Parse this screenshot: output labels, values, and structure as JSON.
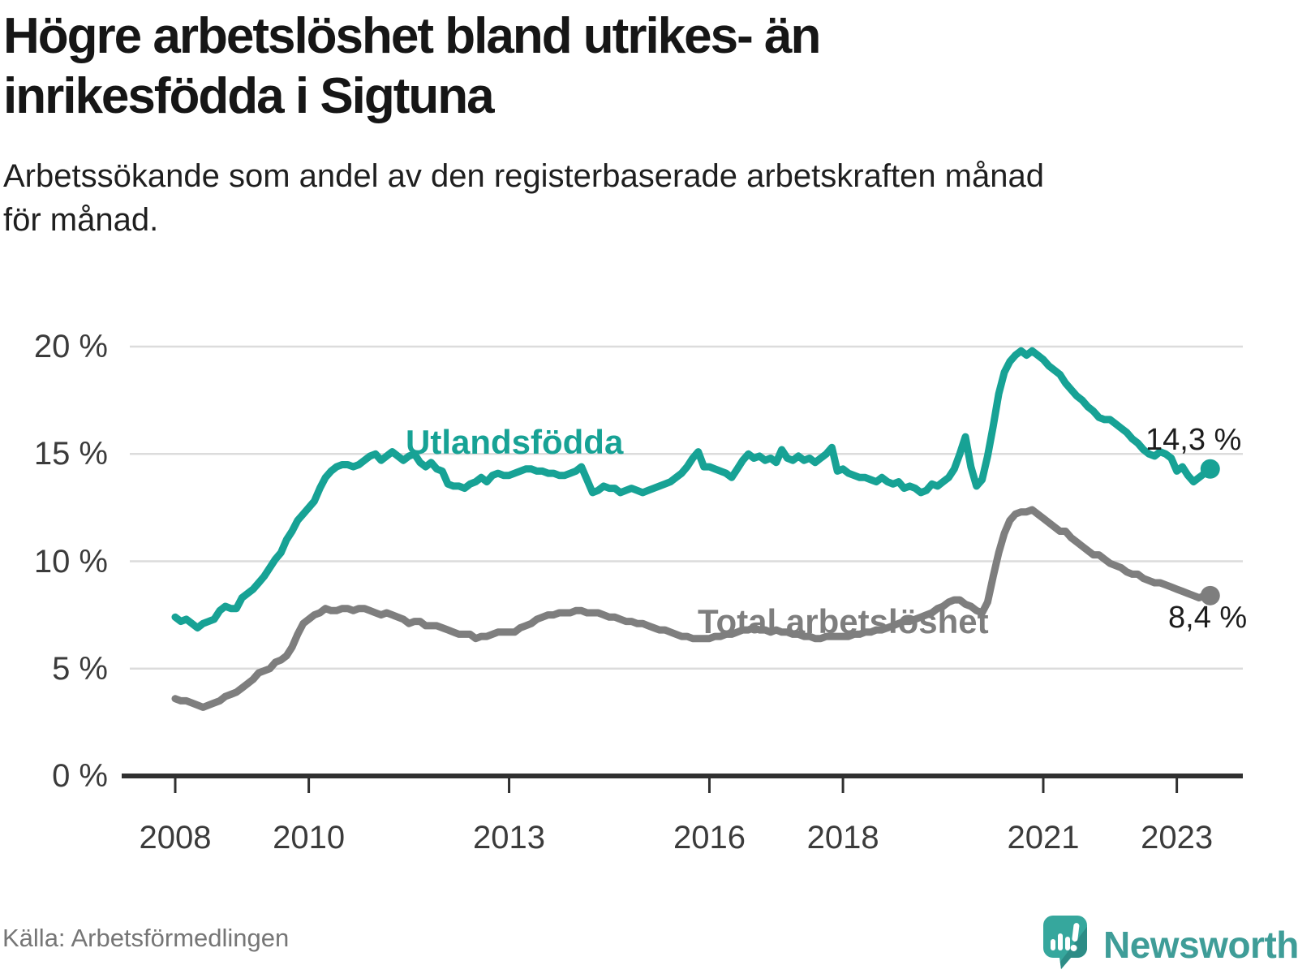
{
  "header": {
    "title_lines": [
      "Högre arbetslöshet bland utrikes- än",
      "inrikesfödda i Sigtuna"
    ],
    "subtitle_lines": [
      "Arbetssökande som andel av den registerbaserade arbetskraften månad",
      "för månad."
    ]
  },
  "footer": {
    "source": "Källa: Arbetsförmedlingen",
    "brand": "Newsworthy"
  },
  "colors": {
    "series_utlandsfodda": "#17a295",
    "series_total": "#7e7e7e",
    "grid": "#dcdcdc",
    "axis": "#303030",
    "logo_teal": "#36a79d",
    "logo_text": "#3f9d98"
  },
  "chart_data": {
    "type": "line",
    "title": "Högre arbetslöshet bland utrikes- än inrikesfödda i Sigtuna",
    "subtitle": "Arbetssökande som andel av den registerbaserade arbetskraften månad för månad.",
    "frequency": "monthly",
    "x_start": "2008-01",
    "x_end": "2023-07",
    "grid": "horizontal",
    "legend_position": "inline-labels",
    "y_axis": {
      "unit": "%",
      "ylim": [
        0,
        20
      ],
      "tick_values": [
        20,
        15,
        10,
        5,
        0
      ],
      "tick_labels": [
        "20 %",
        "15 %",
        "10 %",
        "5 %",
        "0 %"
      ]
    },
    "x_axis": {
      "tick_years": [
        2008,
        2010,
        2013,
        2016,
        2018,
        2021,
        2023
      ],
      "tick_labels": [
        "2008",
        "2010",
        "2013",
        "2016",
        "2018",
        "2021",
        "2023"
      ]
    },
    "series": [
      {
        "name": "Utlandsfödda",
        "color": "#17a295",
        "end_label": "14,3 %",
        "end_value": 14.3,
        "values": [
          7.4,
          7.2,
          7.3,
          7.1,
          6.9,
          7.1,
          7.2,
          7.3,
          7.7,
          7.9,
          7.8,
          7.8,
          8.3,
          8.5,
          8.7,
          9.0,
          9.3,
          9.7,
          10.1,
          10.4,
          11.0,
          11.4,
          11.9,
          12.2,
          12.5,
          12.8,
          13.4,
          13.9,
          14.2,
          14.4,
          14.5,
          14.5,
          14.4,
          14.5,
          14.7,
          14.9,
          15.0,
          14.7,
          14.9,
          15.1,
          14.9,
          14.7,
          14.9,
          15.0,
          14.6,
          14.4,
          14.6,
          14.3,
          14.2,
          13.6,
          13.5,
          13.5,
          13.4,
          13.6,
          13.7,
          13.9,
          13.7,
          14.0,
          14.1,
          14.0,
          14.0,
          14.1,
          14.2,
          14.3,
          14.3,
          14.2,
          14.2,
          14.1,
          14.1,
          14.0,
          14.0,
          14.1,
          14.2,
          14.4,
          13.8,
          13.2,
          13.3,
          13.5,
          13.4,
          13.4,
          13.2,
          13.3,
          13.4,
          13.3,
          13.2,
          13.3,
          13.4,
          13.5,
          13.6,
          13.7,
          13.9,
          14.1,
          14.4,
          14.8,
          15.1,
          14.4,
          14.4,
          14.3,
          14.2,
          14.1,
          13.9,
          14.3,
          14.7,
          15.0,
          14.8,
          14.9,
          14.7,
          14.8,
          14.6,
          15.2,
          14.8,
          14.7,
          14.9,
          14.7,
          14.8,
          14.6,
          14.8,
          15.0,
          15.3,
          14.2,
          14.3,
          14.1,
          14.0,
          13.9,
          13.9,
          13.8,
          13.7,
          13.9,
          13.7,
          13.6,
          13.7,
          13.4,
          13.5,
          13.4,
          13.2,
          13.3,
          13.6,
          13.5,
          13.7,
          13.9,
          14.3,
          15.0,
          15.8,
          14.4,
          13.5,
          13.8,
          14.9,
          16.3,
          17.8,
          18.8,
          19.3,
          19.6,
          19.8,
          19.6,
          19.8,
          19.6,
          19.4,
          19.1,
          18.9,
          18.7,
          18.3,
          18.0,
          17.7,
          17.5,
          17.2,
          17.0,
          16.7,
          16.6,
          16.6,
          16.4,
          16.2,
          16.0,
          15.7,
          15.5,
          15.2,
          15.0,
          14.9,
          15.1,
          15.0,
          14.8,
          14.2,
          14.4,
          14.0,
          13.7,
          13.9,
          14.1,
          14.3
        ]
      },
      {
        "name": "Total arbetslöshet",
        "color": "#7e7e7e",
        "end_label": "8,4 %",
        "end_value": 8.4,
        "values": [
          3.6,
          3.5,
          3.5,
          3.4,
          3.3,
          3.2,
          3.3,
          3.4,
          3.5,
          3.7,
          3.8,
          3.9,
          4.1,
          4.3,
          4.5,
          4.8,
          4.9,
          5.0,
          5.3,
          5.4,
          5.6,
          6.0,
          6.6,
          7.1,
          7.3,
          7.5,
          7.6,
          7.8,
          7.7,
          7.7,
          7.8,
          7.8,
          7.7,
          7.8,
          7.8,
          7.7,
          7.6,
          7.5,
          7.6,
          7.5,
          7.4,
          7.3,
          7.1,
          7.2,
          7.2,
          7.0,
          7.0,
          7.0,
          6.9,
          6.8,
          6.7,
          6.6,
          6.6,
          6.6,
          6.4,
          6.5,
          6.5,
          6.6,
          6.7,
          6.7,
          6.7,
          6.7,
          6.9,
          7.0,
          7.1,
          7.3,
          7.4,
          7.5,
          7.5,
          7.6,
          7.6,
          7.6,
          7.7,
          7.7,
          7.6,
          7.6,
          7.6,
          7.5,
          7.4,
          7.4,
          7.3,
          7.2,
          7.2,
          7.1,
          7.1,
          7.0,
          6.9,
          6.8,
          6.8,
          6.7,
          6.6,
          6.5,
          6.5,
          6.4,
          6.4,
          6.4,
          6.4,
          6.5,
          6.5,
          6.6,
          6.6,
          6.7,
          6.8,
          6.8,
          6.9,
          6.8,
          6.8,
          6.7,
          6.8,
          6.7,
          6.7,
          6.6,
          6.6,
          6.5,
          6.5,
          6.4,
          6.4,
          6.5,
          6.5,
          6.5,
          6.5,
          6.5,
          6.6,
          6.6,
          6.7,
          6.7,
          6.8,
          6.8,
          6.9,
          7.0,
          7.1,
          7.2,
          7.2,
          7.3,
          7.4,
          7.5,
          7.6,
          7.8,
          7.9,
          8.1,
          8.2,
          8.2,
          8.0,
          7.9,
          7.7,
          7.6,
          8.1,
          9.3,
          10.4,
          11.3,
          11.9,
          12.2,
          12.3,
          12.3,
          12.4,
          12.2,
          12.0,
          11.8,
          11.6,
          11.4,
          11.4,
          11.1,
          10.9,
          10.7,
          10.5,
          10.3,
          10.3,
          10.1,
          9.9,
          9.8,
          9.7,
          9.5,
          9.4,
          9.4,
          9.2,
          9.1,
          9.0,
          9.0,
          8.9,
          8.8,
          8.7,
          8.6,
          8.5,
          8.4,
          8.3,
          8.4,
          8.4
        ]
      }
    ]
  }
}
